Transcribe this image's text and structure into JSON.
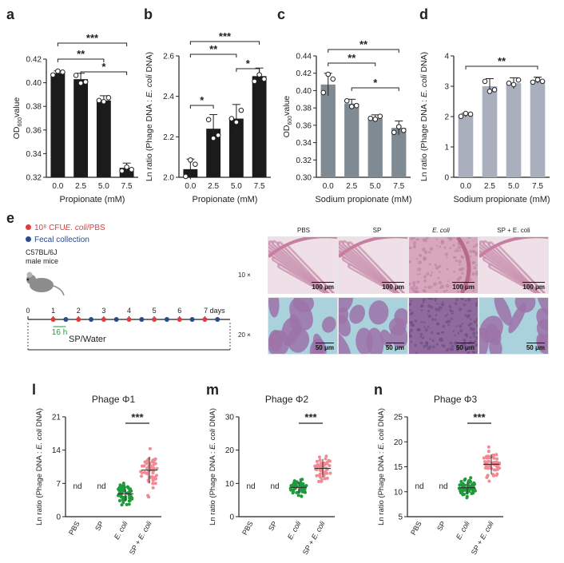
{
  "colors": {
    "black_bar": "#1b1b1b",
    "grey_bar": "#7f8a93",
    "light_bar": "#a9afbd",
    "green": "#1e9b3a",
    "pink": "#f08a93",
    "red_dot": "#e23b3b",
    "blue_dot": "#2a4a8a",
    "he_pink": "#d99ab6",
    "masson_blue": "#8fc3cf",
    "timeline_green": "#1e9b3a"
  },
  "panels": {
    "a": {
      "letter": "a",
      "ylabel_main": "OD",
      "ylabel_sub": "600",
      "ylabel_tail": "value",
      "xlabel": "Propionate (mM)",
      "sig": [
        "***",
        "**",
        "*"
      ]
    },
    "b": {
      "letter": "b",
      "ylabel_pre": "Ln ratio (Phage DNA : ",
      "ylabel_italic": "E. coli",
      "ylabel_post": " DNA)",
      "xlabel": "Propionate (mM)",
      "sig": [
        "***",
        "**",
        "*",
        "*"
      ]
    },
    "c": {
      "letter": "c",
      "ylabel_main": "OD",
      "ylabel_sub": "600",
      "ylabel_tail": "value",
      "xlabel": "Sodium propionate (mM)",
      "sig": [
        "**",
        "**",
        "*"
      ]
    },
    "d": {
      "letter": "d",
      "ylabel_pre": "Ln ratio (Phage DNA : ",
      "ylabel_italic": "E. coli",
      "ylabel_post": " DNA)",
      "xlabel": "Sodium propionate (mM)",
      "sig": [
        "**"
      ]
    },
    "e": {
      "letter": "e",
      "legend_red": "10⁸ CFU",
      "legend_red_italic": "E. coli",
      "legend_red_tail": "/PBS",
      "legend_blue": "Fecal collection",
      "mouse_label_1": "C57BL/6J",
      "mouse_label_2": "male mice",
      "days": [
        "0",
        "1",
        "2",
        "3",
        "4",
        "5",
        "6",
        "7 days"
      ],
      "interval": "16 h",
      "treatment": "SP/Water",
      "col_headers": [
        "PBS",
        "SP",
        "E. coli",
        "SP + E. coli"
      ],
      "row_labels": [
        "10 ×",
        "20 ×"
      ],
      "scale_10": "100 μm",
      "scale_20": "50 μm"
    },
    "l": {
      "letter": "l",
      "title": "Phage Φ1",
      "nd": "nd",
      "sig": "***"
    },
    "m": {
      "letter": "m",
      "title": "Phage Φ2",
      "nd": "nd",
      "sig": "***"
    },
    "n": {
      "letter": "n",
      "title": "Phage Φ3",
      "nd": "nd",
      "sig": "***"
    }
  },
  "scatter_ylabel": {
    "pre": "Ln ratio (Phage DNA : ",
    "italic": "E. coli",
    "post": " DNA)"
  },
  "scatter_groups": [
    "PBS",
    "SP",
    "E. coli",
    "SP + E. coli"
  ],
  "chart_data": [
    {
      "type": "bar",
      "panel": "a",
      "categories": [
        "0.0",
        "2.5",
        "5.0",
        "7.5"
      ],
      "values": [
        0.408,
        0.403,
        0.385,
        0.328
      ],
      "errors": [
        0.002,
        0.005,
        0.004,
        0.004
      ],
      "ylim": [
        0.32,
        0.42
      ],
      "yticks": [
        "0.32",
        "0.34",
        "0.36",
        "0.38",
        "0.40",
        "0.42"
      ],
      "xlabel": "Propionate (mM)",
      "ylabel": "OD600value"
    },
    {
      "type": "bar",
      "panel": "b",
      "categories": [
        "0.0",
        "2.5",
        "5.0",
        "7.5"
      ],
      "values": [
        2.04,
        2.24,
        2.29,
        2.5
      ],
      "errors": [
        0.05,
        0.07,
        0.07,
        0.04
      ],
      "ylim": [
        2.0,
        2.6
      ],
      "yticks": [
        "2.0",
        "2.2",
        "2.4",
        "2.6"
      ],
      "xlabel": "Propionate (mM)",
      "ylabel": "Ln ratio (Phage DNA : E. coli DNA)"
    },
    {
      "type": "bar",
      "panel": "c",
      "categories": [
        "0.0",
        "2.5",
        "5.0",
        "7.5"
      ],
      "values": [
        0.407,
        0.385,
        0.368,
        0.357
      ],
      "errors": [
        0.013,
        0.005,
        0.004,
        0.008
      ],
      "ylim": [
        0.3,
        0.44
      ],
      "yticks": [
        "0.30",
        "0.32",
        "0.34",
        "0.36",
        "0.38",
        "0.40",
        "0.42",
        "0.44"
      ],
      "xlabel": "Sodium propionate (mM)",
      "ylabel": "OD600value"
    },
    {
      "type": "bar",
      "panel": "d",
      "categories": [
        "0.0",
        "2.5",
        "5.0",
        "7.5"
      ],
      "values": [
        2.05,
        3.0,
        3.1,
        3.2
      ],
      "errors": [
        0.06,
        0.25,
        0.18,
        0.1
      ],
      "ylim": [
        0,
        4
      ],
      "yticks": [
        "0",
        "1",
        "2",
        "3",
        "4"
      ],
      "xlabel": "Sodium propionate (mM)",
      "ylabel": "Ln ratio (Phage DNA : E. coli DNA)"
    },
    {
      "type": "scatter",
      "panel": "l",
      "categories": [
        "PBS",
        "SP",
        "E. coli",
        "SP + E. coli"
      ],
      "means": [
        null,
        null,
        4.8,
        9.8
      ],
      "sd": [
        null,
        null,
        1.6,
        2.8
      ],
      "ylim": [
        0,
        21
      ],
      "yticks": [
        "0",
        "7",
        "14",
        "21"
      ]
    },
    {
      "type": "scatter",
      "panel": "m",
      "categories": [
        "PBS",
        "SP",
        "E. coli",
        "SP + E. coli"
      ],
      "means": [
        null,
        null,
        8.8,
        14.5
      ],
      "sd": [
        null,
        null,
        1.6,
        2.8
      ],
      "ylim": [
        0,
        30
      ],
      "yticks": [
        "0",
        "10",
        "20",
        "30"
      ]
    },
    {
      "type": "scatter",
      "panel": "n",
      "categories": [
        "PBS",
        "SP",
        "E. coli",
        "SP + E. coli"
      ],
      "means": [
        null,
        null,
        10.8,
        15.5
      ],
      "sd": [
        null,
        null,
        1.3,
        2.0
      ],
      "ylim": [
        5,
        25
      ],
      "yticks": [
        "5",
        "10",
        "15",
        "20",
        "25"
      ]
    }
  ]
}
